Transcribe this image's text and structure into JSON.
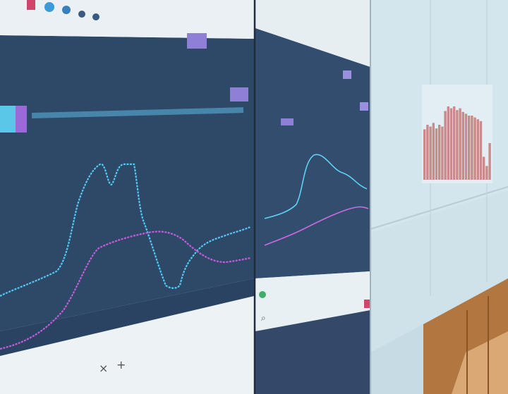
{
  "scene": {
    "description_free": true,
    "colors": {
      "dark_panel": "#2e4868",
      "light_panel": "#d6e7ee",
      "browser_bar": "#eef3f6",
      "series_cyan": "#4fc3ec",
      "series_magenta": "#c65ad8",
      "bar_red": "#c98a8a",
      "wood": "#b57a45",
      "badge_purple": "#8f7fd6"
    },
    "icons": [
      "search-icon",
      "home-icon",
      "bell-icon",
      "user-icon",
      "plus-icon",
      "close-icon"
    ]
  }
}
